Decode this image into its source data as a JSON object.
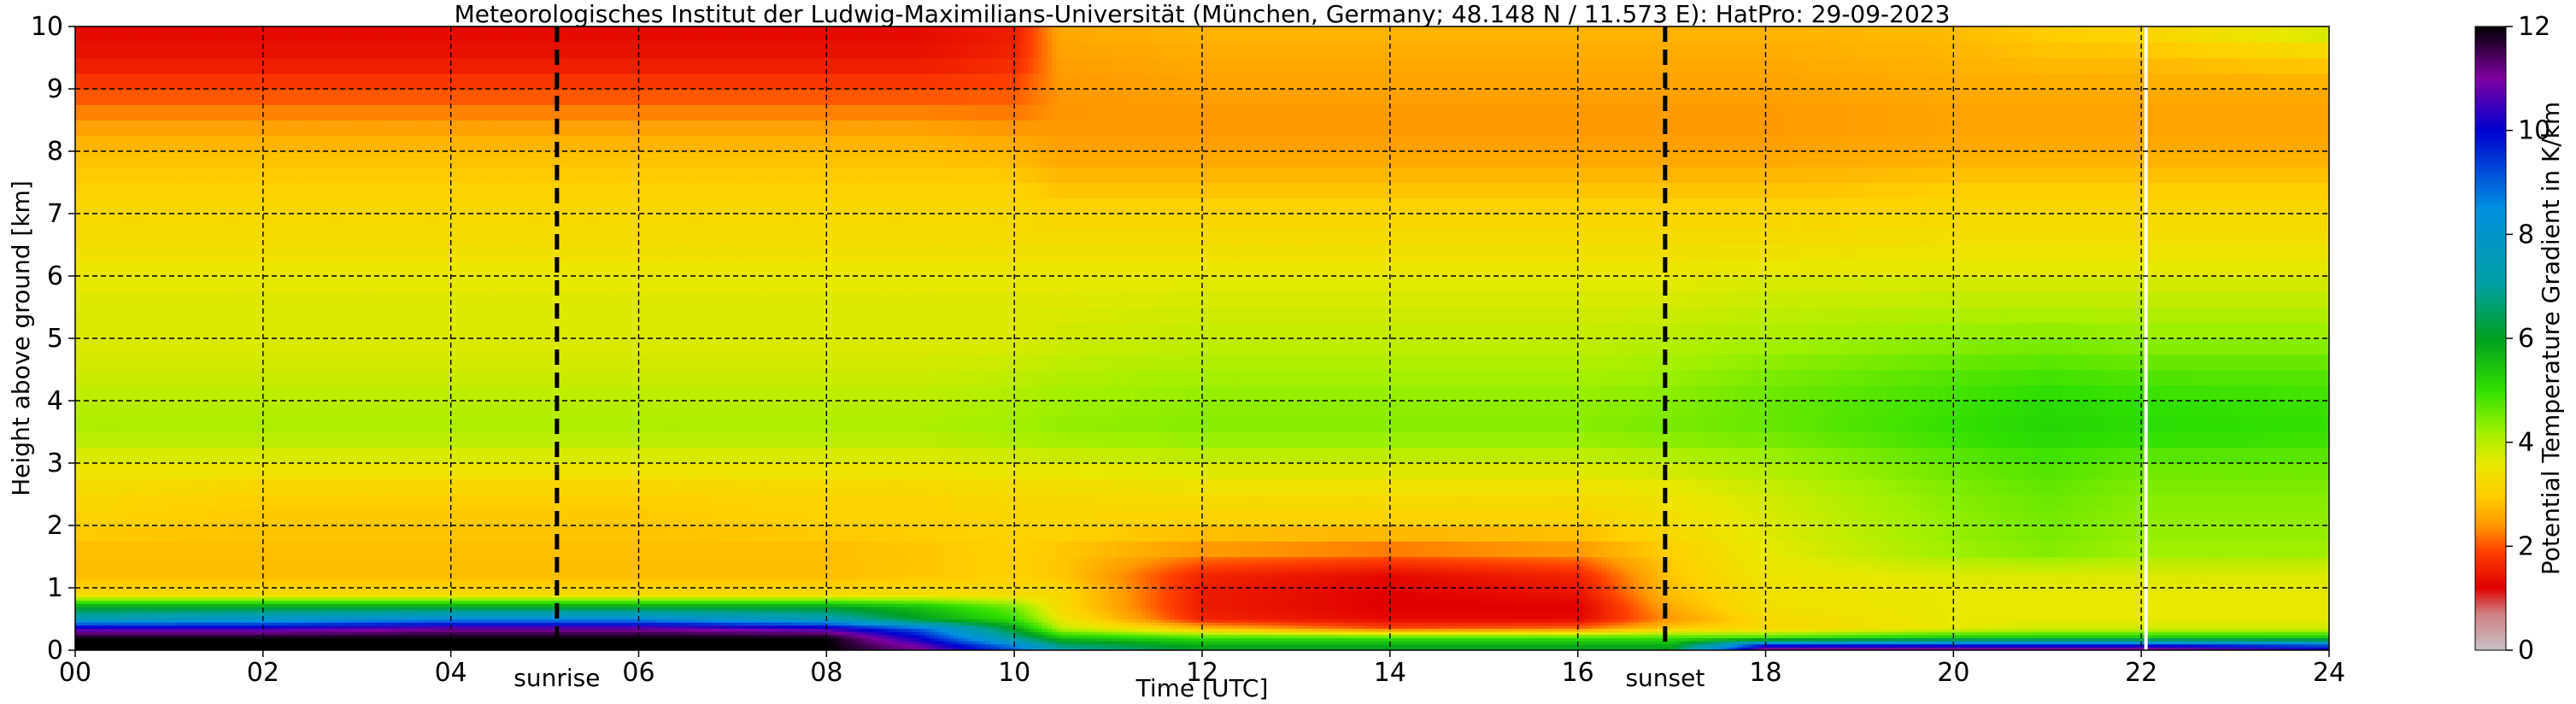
{
  "chart_data": {
    "type": "heatmap",
    "title": "Meteorologisches Institut der Ludwig-Maximilians-Universität (München, Germany; 48.148 N / 11.573 E):    HatPro: 29-09-2023",
    "xlabel": "Time [UTC]",
    "ylabel": "Height above ground [km]",
    "colorbar_label": "Potential Temperature Gradient in K/km",
    "xlim": [
      0,
      24
    ],
    "ylim": [
      0,
      10
    ],
    "clim": [
      0,
      12
    ],
    "grid": true,
    "x_ticks": [
      0,
      2,
      4,
      6,
      8,
      10,
      12,
      14,
      16,
      18,
      20,
      22,
      24
    ],
    "x_tick_labels": [
      "00",
      "02",
      "04",
      "06",
      "08",
      "10",
      "12",
      "14",
      "16",
      "18",
      "20",
      "22",
      "24"
    ],
    "y_ticks": [
      0,
      1,
      2,
      3,
      4,
      5,
      6,
      7,
      8,
      9,
      10
    ],
    "y_tick_labels": [
      "0",
      "1",
      "2",
      "3",
      "4",
      "5",
      "6",
      "7",
      "8",
      "9",
      "10"
    ],
    "colorbar_ticks": [
      0,
      2,
      4,
      6,
      8,
      10,
      12
    ],
    "colorbar_tick_labels": [
      "0",
      "2",
      "4",
      "6",
      "8",
      "10",
      "12"
    ],
    "colormap": [
      {
        "v": 0,
        "c": "#c8c0c8"
      },
      {
        "v": 0.7,
        "c": "#d08080"
      },
      {
        "v": 1.2,
        "c": "#e00000"
      },
      {
        "v": 1.9,
        "c": "#ff4000"
      },
      {
        "v": 2.4,
        "c": "#ff9800"
      },
      {
        "v": 3.0,
        "c": "#ffd000"
      },
      {
        "v": 3.6,
        "c": "#e8e800"
      },
      {
        "v": 4.2,
        "c": "#a0f000"
      },
      {
        "v": 5.0,
        "c": "#30e000"
      },
      {
        "v": 6.0,
        "c": "#00a020"
      },
      {
        "v": 7.0,
        "c": "#00a0a0"
      },
      {
        "v": 8.5,
        "c": "#0090e0"
      },
      {
        "v": 10.0,
        "c": "#0000d0"
      },
      {
        "v": 11.0,
        "c": "#8000a0"
      },
      {
        "v": 12.0,
        "c": "#000000"
      }
    ],
    "field": {
      "hour_knots": [
        0,
        2,
        4,
        6,
        8,
        9,
        10,
        10.5,
        12,
        14,
        16,
        17,
        18,
        20,
        21,
        22,
        24
      ],
      "height_knots_km": [
        0.05,
        0.2,
        0.35,
        0.5,
        0.7,
        0.9,
        1.2,
        1.6,
        2.0,
        2.5,
        3.0,
        3.5,
        4.0,
        4.5,
        5.0,
        5.5,
        6.0,
        6.5,
        7.0,
        7.5,
        8.0,
        8.5,
        9.0,
        9.5,
        10.0
      ],
      "values": [
        [
          12,
          12,
          12,
          12,
          12,
          11,
          9,
          7,
          6,
          6,
          6,
          6,
          11,
          11,
          11,
          11,
          10
        ],
        [
          12,
          12,
          12,
          12,
          12,
          10,
          7,
          5.5,
          5,
          5,
          5,
          5,
          5,
          5.5,
          5.5,
          5.5,
          5.5
        ],
        [
          10.5,
          10.5,
          11,
          11,
          10.5,
          9,
          6,
          4,
          2.8,
          2,
          2.2,
          3,
          3.2,
          3.6,
          3.8,
          3.8,
          3.8
        ],
        [
          7.5,
          8,
          8.5,
          8.5,
          7.5,
          6,
          5,
          3.5,
          1.6,
          1.3,
          1.3,
          2.4,
          3.2,
          3.6,
          3.6,
          3.6,
          3.6
        ],
        [
          6,
          6,
          6,
          6,
          6,
          5.5,
          4.5,
          3.2,
          1.5,
          1.2,
          1.2,
          2.6,
          3.4,
          3.6,
          3.6,
          3.6,
          3.6
        ],
        [
          3.2,
          3.2,
          3.2,
          3.2,
          3.2,
          3.3,
          3.3,
          3.2,
          1.5,
          1.2,
          1.4,
          2.8,
          3.4,
          3.6,
          3.6,
          3.6,
          3.6
        ],
        [
          2.8,
          2.8,
          2.8,
          2.8,
          2.8,
          2.9,
          3.0,
          2.9,
          1.6,
          1.3,
          1.6,
          2.9,
          3.5,
          3.7,
          3.7,
          3.7,
          3.7
        ],
        [
          2.8,
          2.8,
          2.8,
          2.8,
          2.8,
          2.9,
          3.0,
          2.9,
          2.4,
          2.2,
          2.4,
          3.0,
          3.6,
          4.2,
          4.4,
          4.2,
          4.2
        ],
        [
          3.0,
          2.9,
          2.9,
          2.9,
          3.0,
          3.0,
          3.1,
          3.1,
          3.0,
          3.0,
          3.0,
          3.3,
          3.7,
          4.3,
          4.5,
          4.3,
          4.3
        ],
        [
          3.2,
          3.0,
          3.0,
          3.0,
          3.1,
          3.1,
          3.2,
          3.2,
          3.3,
          3.3,
          3.3,
          3.5,
          3.8,
          4.4,
          4.6,
          4.4,
          4.4
        ],
        [
          3.6,
          3.6,
          3.6,
          3.6,
          3.6,
          3.6,
          3.7,
          3.7,
          3.8,
          3.8,
          3.8,
          3.9,
          4.1,
          4.6,
          4.8,
          4.6,
          4.6
        ],
        [
          4.1,
          4.1,
          4.1,
          4.1,
          4.1,
          4.1,
          4.2,
          4.3,
          4.4,
          4.4,
          4.4,
          4.5,
          4.6,
          5.0,
          5.2,
          5.1,
          5.0
        ],
        [
          4.0,
          4.0,
          4.0,
          4.0,
          4.0,
          4.0,
          4.1,
          4.2,
          4.3,
          4.3,
          4.3,
          4.4,
          4.6,
          4.9,
          5.1,
          5.0,
          4.9
        ],
        [
          3.8,
          3.8,
          3.8,
          3.8,
          3.8,
          3.8,
          3.9,
          4.0,
          4.1,
          4.1,
          4.1,
          4.2,
          4.4,
          4.7,
          4.8,
          4.7,
          4.7
        ],
        [
          3.7,
          3.7,
          3.7,
          3.7,
          3.7,
          3.7,
          3.7,
          3.8,
          3.9,
          3.9,
          3.9,
          4.0,
          4.1,
          4.3,
          4.4,
          4.3,
          4.3
        ],
        [
          3.7,
          3.7,
          3.7,
          3.7,
          3.7,
          3.7,
          3.7,
          3.7,
          3.8,
          3.8,
          3.8,
          3.8,
          3.9,
          4.0,
          4.0,
          4.0,
          4.0
        ],
        [
          3.6,
          3.6,
          3.6,
          3.6,
          3.6,
          3.6,
          3.6,
          3.6,
          3.6,
          3.6,
          3.6,
          3.6,
          3.7,
          3.7,
          3.7,
          3.7,
          3.7
        ],
        [
          3.3,
          3.3,
          3.3,
          3.3,
          3.3,
          3.3,
          3.3,
          3.3,
          3.3,
          3.3,
          3.3,
          3.3,
          3.3,
          3.4,
          3.4,
          3.4,
          3.4
        ],
        [
          3.2,
          3.2,
          3.2,
          3.2,
          3.2,
          3.2,
          3.2,
          3.1,
          3.1,
          3.1,
          3.1,
          3.1,
          3.1,
          3.2,
          3.2,
          3.2,
          3.2
        ],
        [
          3.0,
          3.0,
          3.0,
          3.0,
          3.0,
          3.0,
          3.0,
          2.8,
          2.8,
          2.8,
          2.8,
          2.8,
          2.8,
          2.9,
          2.9,
          2.9,
          2.9
        ],
        [
          2.8,
          2.8,
          2.8,
          2.8,
          2.8,
          2.8,
          2.7,
          2.5,
          2.5,
          2.5,
          2.5,
          2.5,
          2.5,
          2.6,
          2.6,
          2.6,
          2.6
        ],
        [
          2.4,
          2.4,
          2.4,
          2.4,
          2.4,
          2.4,
          2.3,
          2.4,
          2.4,
          2.4,
          2.4,
          2.4,
          2.4,
          2.5,
          2.5,
          2.5,
          2.5
        ],
        [
          1.9,
          1.9,
          1.9,
          1.9,
          1.9,
          1.9,
          2.0,
          2.4,
          2.5,
          2.5,
          2.5,
          2.5,
          2.5,
          2.6,
          2.6,
          2.6,
          2.6
        ],
        [
          1.4,
          1.4,
          1.4,
          1.4,
          1.4,
          1.4,
          1.6,
          2.5,
          2.6,
          2.6,
          2.6,
          2.6,
          2.6,
          2.7,
          2.8,
          2.8,
          3.0
        ],
        [
          1.3,
          1.3,
          1.3,
          1.3,
          1.3,
          1.3,
          1.5,
          2.6,
          2.7,
          2.7,
          2.7,
          2.7,
          2.7,
          2.8,
          3.0,
          3.2,
          4.0
        ]
      ]
    },
    "vertical_markers": [
      {
        "x": 5.13,
        "label": "sunrise",
        "style": "dashed",
        "color": "#000000"
      },
      {
        "x": 16.93,
        "label": "sunset",
        "style": "dashed",
        "color": "#000000"
      }
    ],
    "data_gaps": [
      22.05
    ]
  }
}
